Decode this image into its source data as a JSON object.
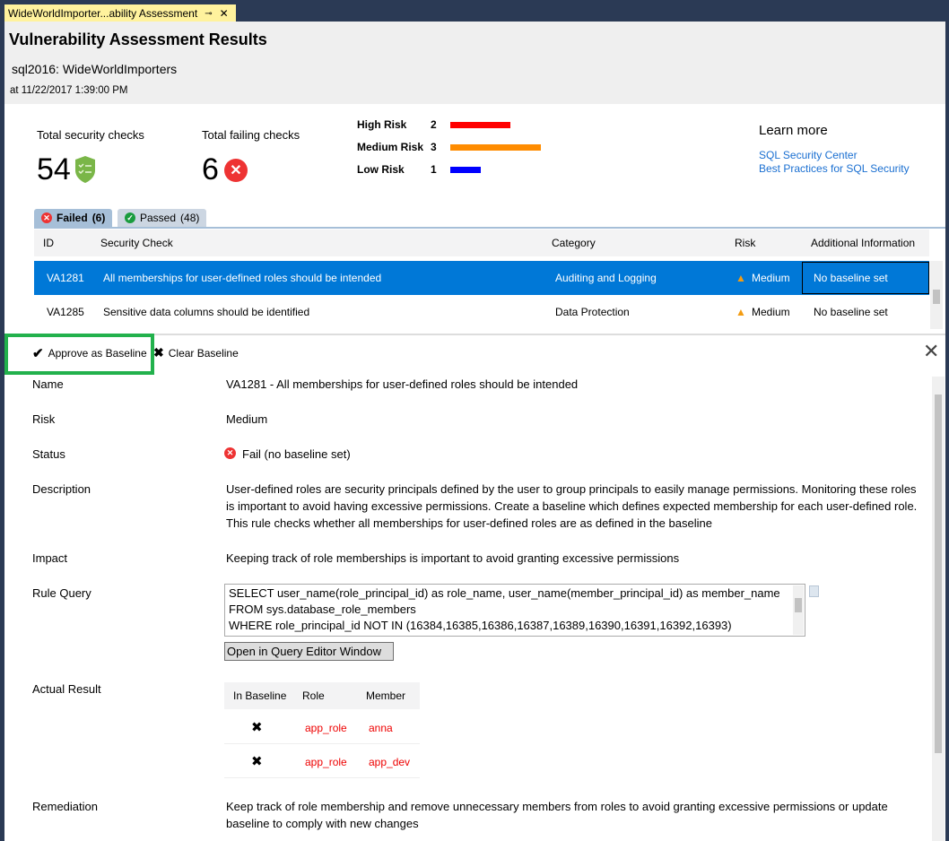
{
  "tab": {
    "title": "WideWorldImporter...ability Assessment",
    "pin": "⊸",
    "close": "✕"
  },
  "header": {
    "title": "Vulnerability Assessment Results",
    "server": "sql2016:  WideWorldImporters",
    "timestamp": "at 11/22/2017 1:39:00 PM"
  },
  "summary": {
    "total_label": "Total security checks",
    "total": "54",
    "failing_label": "Total failing checks",
    "failing": "6"
  },
  "risks": [
    {
      "label": "High Risk",
      "count": "2",
      "value": 2,
      "color": "#ff0000"
    },
    {
      "label": "Medium Risk",
      "count": "3",
      "value": 3,
      "color": "#ff8c00"
    },
    {
      "label": "Low Risk",
      "count": "1",
      "value": 1,
      "color": "#0000ff"
    }
  ],
  "learn": {
    "title": "Learn more",
    "links": [
      "SQL Security Center",
      "Best Practices for SQL Security"
    ]
  },
  "tabs": [
    {
      "label": "Failed",
      "count": "(6)"
    },
    {
      "label": "Passed",
      "count": "(48)"
    }
  ],
  "table": {
    "columns": [
      "ID",
      "Security Check",
      "Category",
      "Risk",
      "Additional Information"
    ],
    "rows": [
      {
        "id": "VA1281",
        "check": "All memberships for user-defined roles should be intended",
        "category": "Auditing and Logging",
        "risk": "Medium",
        "info": "No baseline set"
      },
      {
        "id": "VA1285",
        "check": "Sensitive data columns should be identified",
        "category": "Data Protection",
        "risk": "Medium",
        "info": "No baseline set"
      }
    ]
  },
  "toolbar": {
    "approve": "Approve as Baseline",
    "clear": "Clear Baseline"
  },
  "details": {
    "name_label": "Name",
    "name": "VA1281 - All memberships for user-defined roles should be intended",
    "risk_label": "Risk",
    "risk": "Medium",
    "status_label": "Status",
    "status": "Fail (no baseline set)",
    "desc_label": "Description",
    "desc": "User-defined roles are security principals defined by the user to group principals to easily manage permissions. Monitoring these roles is important to avoid having excessive permissions. Create a baseline which defines expected membership for each user-defined role. This rule checks whether all memberships for user-defined roles are as defined in the baseline",
    "impact_label": "Impact",
    "impact": "Keeping track of role memberships is important to avoid granting excessive permissions",
    "query_label": "Rule Query",
    "query": [
      "SELECT user_name(role_principal_id) as role_name, user_name(member_principal_id) as member_name",
      "FROM sys.database_role_members",
      "WHERE role_principal_id NOT IN (16384,16385,16386,16387,16389,16390,16391,16392,16393)"
    ],
    "open_button": "Open in Query Editor Window",
    "result_label": "Actual Result",
    "result_columns": [
      "In Baseline",
      "Role",
      "Member"
    ],
    "result_rows": [
      {
        "in_baseline": "✖",
        "role": "app_role",
        "member": "anna"
      },
      {
        "in_baseline": "✖",
        "role": "app_role",
        "member": "app_dev"
      }
    ],
    "remediation_label": "Remediation",
    "remediation": "Keep track of role membership and remove unnecessary members from roles to avoid granting excessive permissions or update baseline to comply with new changes"
  }
}
